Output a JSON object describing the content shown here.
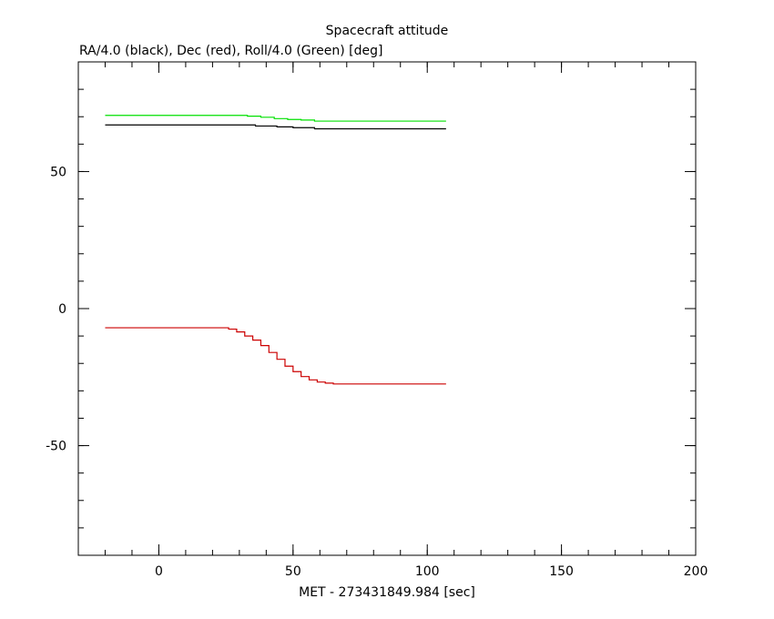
{
  "chart_data": {
    "type": "line",
    "title": "Spacecraft attitude",
    "subtitle": "RA/4.0 (black), Dec (red), Roll/4.0 (Green) [deg]",
    "xlabel": "MET - 273431849.984 [sec]",
    "ylabel": "",
    "xlim": [
      -30,
      200
    ],
    "ylim": [
      -90,
      90
    ],
    "x_ticks": [
      0,
      50,
      100,
      150,
      200
    ],
    "y_ticks": [
      -50,
      0,
      50
    ],
    "grid": false,
    "series": [
      {
        "color": "#00e000",
        "points": [
          [
            -20,
            70.5
          ],
          [
            33,
            70.5
          ],
          [
            33,
            70.2
          ],
          [
            38,
            70.2
          ],
          [
            38,
            69.8
          ],
          [
            43,
            69.8
          ],
          [
            43,
            69.3
          ],
          [
            48,
            69.3
          ],
          [
            48,
            69.0
          ],
          [
            53,
            69.0
          ],
          [
            53,
            68.8
          ],
          [
            58,
            68.8
          ],
          [
            58,
            68.4
          ],
          [
            107,
            68.4
          ]
        ]
      },
      {
        "color": "#000000",
        "points": [
          [
            -20,
            67.0
          ],
          [
            36,
            67.0
          ],
          [
            36,
            66.6
          ],
          [
            44,
            66.6
          ],
          [
            44,
            66.3
          ],
          [
            50,
            66.3
          ],
          [
            50,
            66.0
          ],
          [
            58,
            66.0
          ],
          [
            58,
            65.6
          ],
          [
            107,
            65.6
          ]
        ]
      },
      {
        "color": "#cc0000",
        "points": [
          [
            -20,
            -7.0
          ],
          [
            26,
            -7.0
          ],
          [
            26,
            -7.5
          ],
          [
            29,
            -7.5
          ],
          [
            29,
            -8.5
          ],
          [
            32,
            -8.5
          ],
          [
            32,
            -10.0
          ],
          [
            35,
            -10.0
          ],
          [
            35,
            -11.5
          ],
          [
            38,
            -11.5
          ],
          [
            38,
            -13.5
          ],
          [
            41,
            -13.5
          ],
          [
            41,
            -16.0
          ],
          [
            44,
            -16.0
          ],
          [
            44,
            -18.5
          ],
          [
            47,
            -18.5
          ],
          [
            47,
            -21.0
          ],
          [
            50,
            -21.0
          ],
          [
            50,
            -23.0
          ],
          [
            53,
            -23.0
          ],
          [
            53,
            -24.8
          ],
          [
            56,
            -24.8
          ],
          [
            56,
            -26.0
          ],
          [
            59,
            -26.0
          ],
          [
            59,
            -26.8
          ],
          [
            62,
            -26.8
          ],
          [
            62,
            -27.2
          ],
          [
            65,
            -27.2
          ],
          [
            65,
            -27.5
          ],
          [
            107,
            -27.5
          ]
        ]
      }
    ]
  }
}
